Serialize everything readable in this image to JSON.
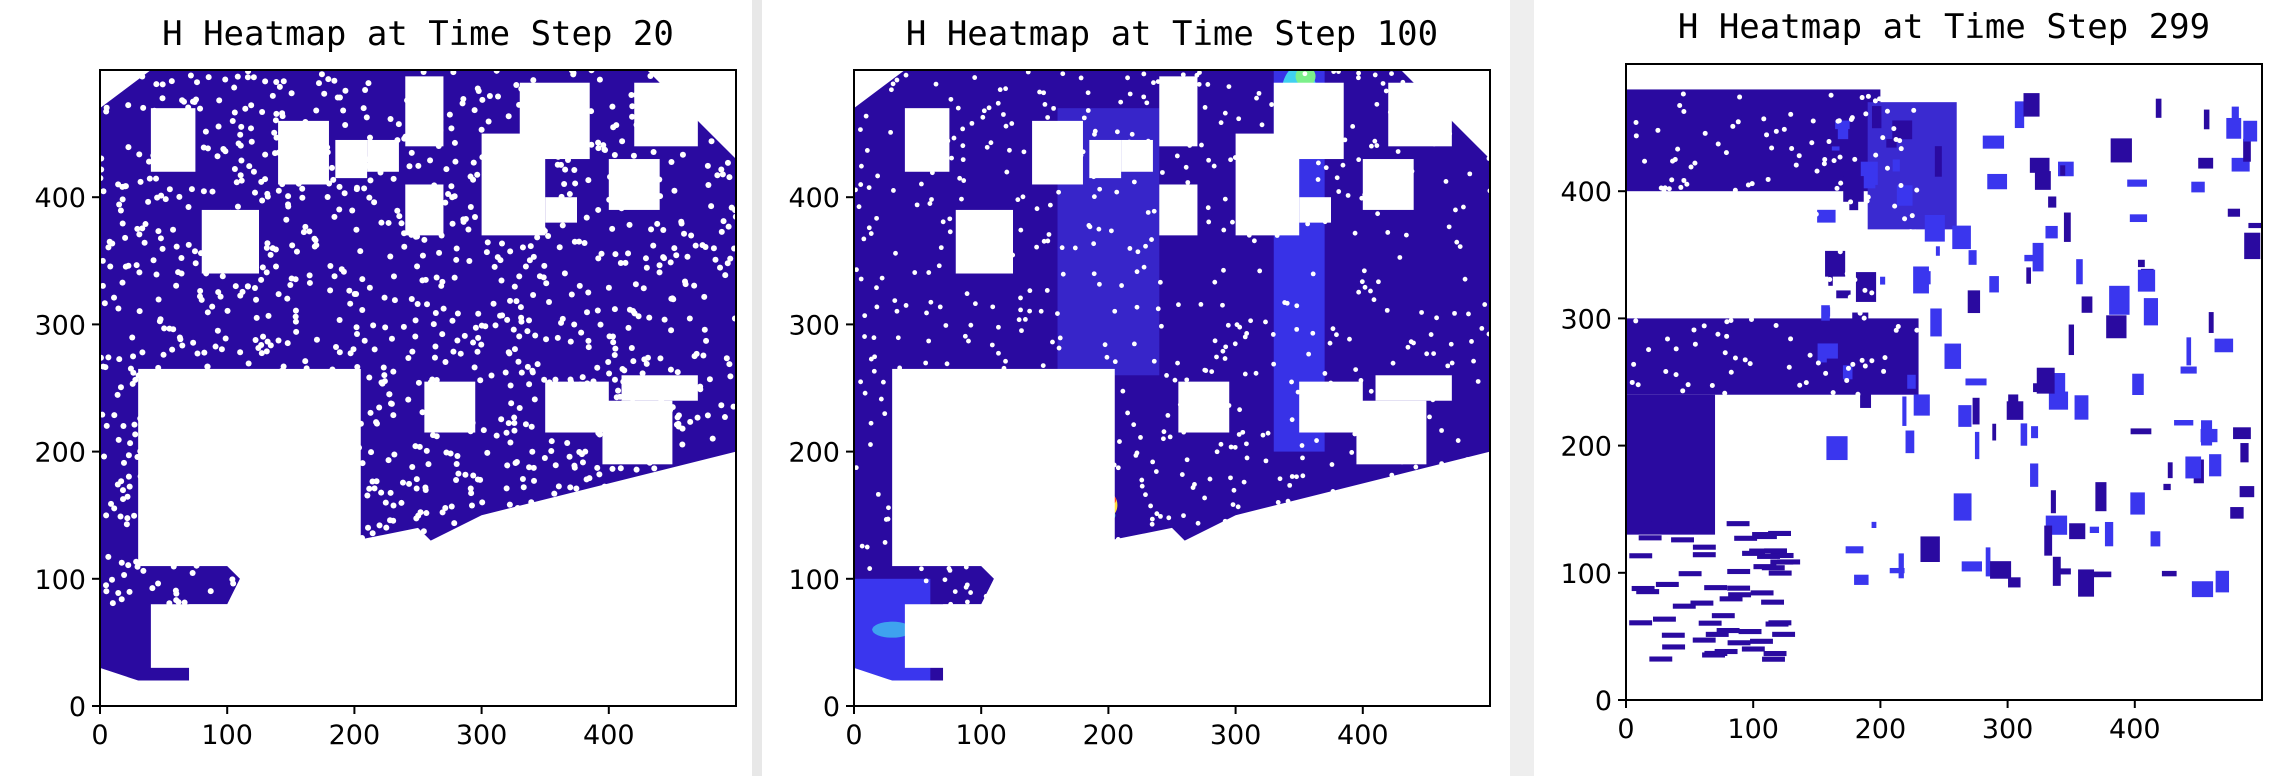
{
  "colors": {
    "background": "#ffffff",
    "dark_blue": "#2a0aa0",
    "mid_blue": "#3a2ad0",
    "bright_blue": "#3a36ee",
    "cyan": "#40d0f0",
    "green": "#7cf08a",
    "yellow": "#ffe040",
    "red": "#ff4020",
    "gutter": "#e6e6e6"
  },
  "chart_data": [
    {
      "type": "heatmap",
      "title": "H Heatmap at Time Step 20",
      "xlabel": "",
      "ylabel": "",
      "xlim": [
        0,
        500
      ],
      "ylim": [
        0,
        500
      ],
      "xticks": [
        "0",
        "100",
        "200",
        "300",
        "400"
      ],
      "yticks": [
        "0",
        "100",
        "200",
        "300",
        "400"
      ],
      "colormap": "jet",
      "dominant_color": "dark blue",
      "grid": false
    },
    {
      "type": "heatmap",
      "title": "H Heatmap at Time Step 100",
      "xlabel": "",
      "ylabel": "",
      "xlim": [
        0,
        500
      ],
      "ylim": [
        0,
        500
      ],
      "xticks": [
        "0",
        "100",
        "200",
        "300",
        "400"
      ],
      "yticks": [
        "0",
        "100",
        "200",
        "300",
        "400"
      ],
      "colormap": "jet",
      "dominant_color": "dark blue with light blue, cyan, green and yellow patches",
      "grid": false
    },
    {
      "type": "heatmap",
      "title": "H Heatmap at Time Step 299",
      "xlabel": "",
      "ylabel": "",
      "xlim": [
        0,
        500
      ],
      "ylim": [
        0,
        500
      ],
      "xticks": [
        "0",
        "100",
        "200",
        "300",
        "400"
      ],
      "yticks": [
        "0",
        "100",
        "200",
        "300",
        "400"
      ],
      "colormap": "jet",
      "dominant_color": "mostly white with scattered dark blue patches",
      "grid": false
    }
  ]
}
